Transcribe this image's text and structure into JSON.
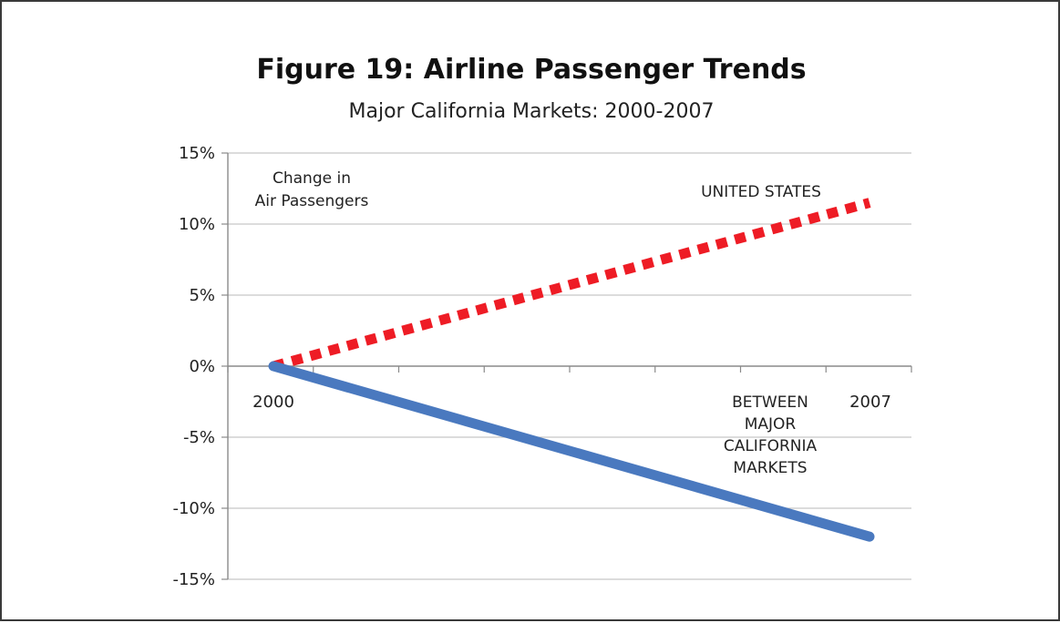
{
  "chart_data": {
    "type": "line",
    "title": "Figure 19: Airline Passenger Trends",
    "subtitle": "Major California Markets: 2000-2007",
    "xlabel": "",
    "ylabel": "",
    "x_tick_labels": [
      "2000",
      "2007"
    ],
    "y_ticks": [
      {
        "value": 15,
        "label": "15%"
      },
      {
        "value": 10,
        "label": "10%"
      },
      {
        "value": 5,
        "label": "5%"
      },
      {
        "value": 0,
        "label": "0%"
      },
      {
        "value": -5,
        "label": "-5%"
      },
      {
        "value": -10,
        "label": "-10%"
      },
      {
        "value": -15,
        "label": "-15%"
      }
    ],
    "ylim": [
      -15,
      15
    ],
    "xlim": [
      0,
      7
    ],
    "grid": true,
    "annotations": {
      "corner_label": [
        "Change in",
        "Air Passengers"
      ],
      "us_label": [
        "UNITED STATES"
      ],
      "ca_label": [
        "BETWEEN",
        "MAJOR",
        "CALIFORNIA",
        "MARKETS"
      ]
    },
    "series": [
      {
        "name": "UNITED STATES",
        "color": "#ee1c25",
        "style": "dotted",
        "x": [
          0,
          7
        ],
        "y": [
          0,
          11.5
        ]
      },
      {
        "name": "BETWEEN MAJOR CALIFORNIA MARKETS",
        "color": "#4a79bf",
        "style": "solid",
        "x": [
          0,
          7
        ],
        "y": [
          0,
          -12
        ]
      }
    ]
  }
}
